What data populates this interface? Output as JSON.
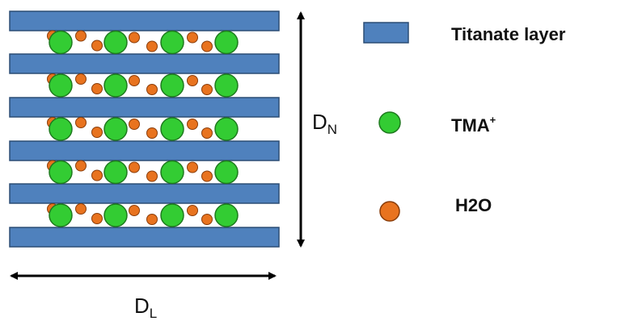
{
  "legend": [
    {
      "label": "Titanate layer"
    },
    {
      "label": "TMA",
      "superscript": "+"
    },
    {
      "label": "H2O"
    }
  ],
  "dimensions": {
    "vertical": {
      "symbol": "D",
      "subscript": "N"
    },
    "horizontal": {
      "symbol": "D",
      "subscript": "L"
    }
  }
}
